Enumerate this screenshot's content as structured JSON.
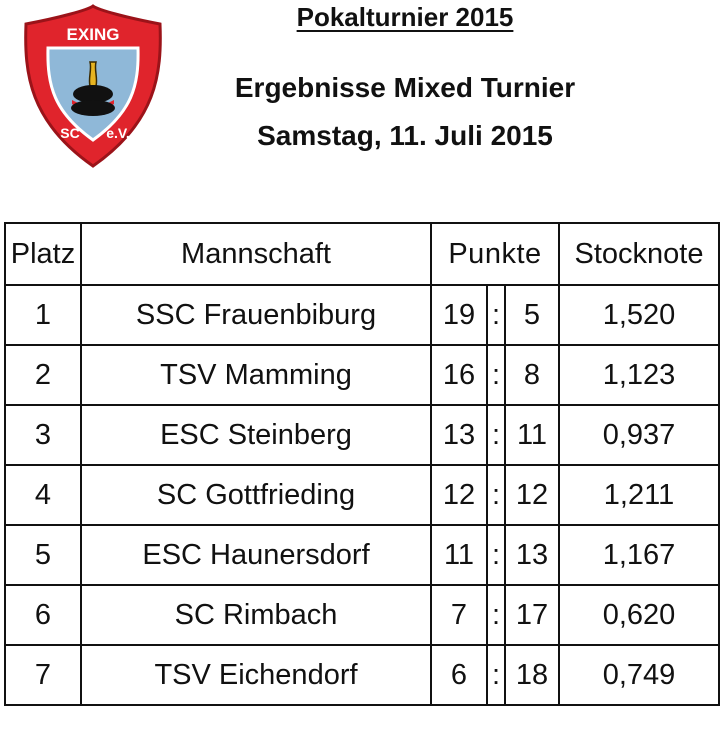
{
  "logo": {
    "top_text": "EXING",
    "bottom_left_text": "SC",
    "bottom_right_text": "e.V.",
    "colors": {
      "shield_red": "#e0242c",
      "inner_blue": "#8fb8d8",
      "emblem_black": "#111111",
      "emblem_gold": "#e6b422"
    }
  },
  "header": {
    "title": "Pokalturnier 2015",
    "subtitle": "Ergebnisse Mixed Turnier",
    "date": "Samstag, 11. Juli 2015"
  },
  "table": {
    "columns": {
      "platz": "Platz",
      "mannschaft": "Mannschaft",
      "punkte": "Punkte",
      "stocknote": "Stocknote"
    },
    "rows": [
      {
        "platz": "1",
        "mannschaft": "SSC Frauenbiburg",
        "plus": "19",
        "sep": ":",
        "minus": "5",
        "stocknote": "1,520"
      },
      {
        "platz": "2",
        "mannschaft": "TSV Mamming",
        "plus": "16",
        "sep": ":",
        "minus": "8",
        "stocknote": "1,123"
      },
      {
        "platz": "3",
        "mannschaft": "ESC Steinberg",
        "plus": "13",
        "sep": ":",
        "minus": "11",
        "stocknote": "0,937"
      },
      {
        "platz": "4",
        "mannschaft": "SC Gottfrieding",
        "plus": "12",
        "sep": ":",
        "minus": "12",
        "stocknote": "1,211"
      },
      {
        "platz": "5",
        "mannschaft": "ESC Haunersdorf",
        "plus": "11",
        "sep": ":",
        "minus": "13",
        "stocknote": "1,167"
      },
      {
        "platz": "6",
        "mannschaft": "SC Rimbach",
        "plus": "7",
        "sep": ":",
        "minus": "17",
        "stocknote": "0,620"
      },
      {
        "platz": "7",
        "mannschaft": "TSV Eichendorf",
        "plus": "6",
        "sep": ":",
        "minus": "18",
        "stocknote": "0,749"
      }
    ]
  }
}
